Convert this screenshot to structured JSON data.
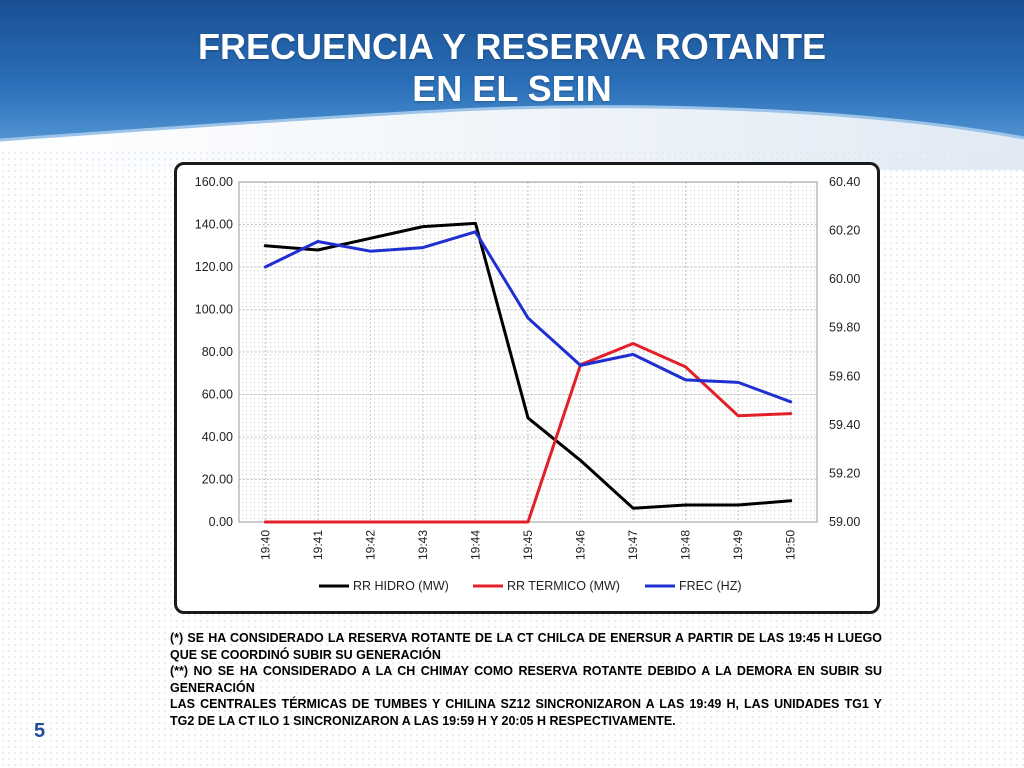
{
  "slide": {
    "title_line1": "FRECUENCIA Y RESERVA ROTANTE",
    "title_line2": "EN EL SEIN",
    "page_number": "5",
    "notes": [
      "(*) SE HA CONSIDERADO LA RESERVA ROTANTE DE LA CT CHILCA  DE ENERSUR A PARTIR DE LAS 19:45 H LUEGO QUE SE COORDINÓ SUBIR SU GENERACIÓN",
      "(**) NO SE HA CONSIDERADO A LA CH CHIMAY COMO RESERVA ROTANTE DEBIDO A LA DEMORA EN SUBIR SU GENERACIÓN",
      "LAS CENTRALES TÉRMICAS DE TUMBES Y CHILINA SZ12 SINCRONIZARON A LAS 19:49 H, LAS UNIDADES TG1 Y TG2 DE LA CT ILO 1 SINCRONIZARON A LAS 19:59 H Y 20:05 H RESPECTIVAMENTE."
    ],
    "colors": {
      "header_blue": "#1d5fa8",
      "header_light": "#6aa6dc",
      "page_number": "#1f4e99"
    }
  },
  "chart_data": {
    "type": "line",
    "categories": [
      "19:40",
      "19:41",
      "19:42",
      "19:43",
      "19:44",
      "19:45",
      "19:46",
      "19:47",
      "19:48",
      "19:49",
      "19:50"
    ],
    "y_left": {
      "range": [
        0,
        160
      ],
      "ticks": [
        "0.00",
        "20.00",
        "40.00",
        "60.00",
        "80.00",
        "100.00",
        "120.00",
        "140.00",
        "160.00"
      ]
    },
    "y_right": {
      "range": [
        59.0,
        60.4
      ],
      "ticks": [
        "59.00",
        "59.20",
        "59.40",
        "59.60",
        "59.80",
        "60.00",
        "60.20",
        "60.40"
      ]
    },
    "grid": true,
    "legend": "bottom",
    "series": [
      {
        "name": "RR HIDRO (MW)",
        "axis": "left",
        "color": "#000000",
        "values": [
          130,
          128,
          133.5,
          139,
          140.5,
          49,
          29,
          6.5,
          8,
          8,
          10
        ]
      },
      {
        "name": "RR TERMICO (MW)",
        "axis": "left",
        "color": "#e3202a",
        "values": [
          0,
          0,
          0,
          0,
          0,
          0,
          74,
          84,
          73,
          50,
          51
        ]
      },
      {
        "name": "FREC (HZ)",
        "axis": "right",
        "color": "#1f2fd0",
        "values": [
          60.05,
          60.155,
          60.115,
          60.13,
          60.195,
          59.84,
          59.645,
          59.69,
          59.585,
          59.575,
          59.495
        ]
      }
    ]
  }
}
